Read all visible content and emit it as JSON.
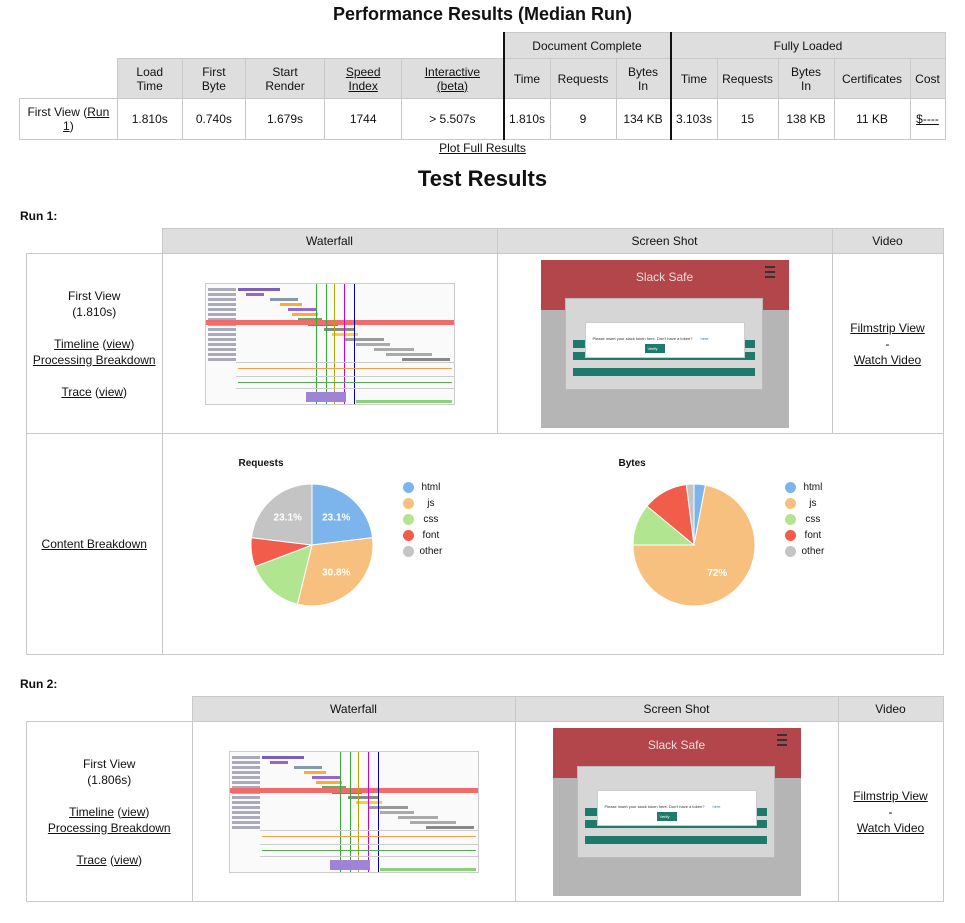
{
  "title": "Performance Results (Median Run)",
  "perf": {
    "group_doc": "Document Complete",
    "group_full": "Fully Loaded",
    "headers": {
      "load_time": [
        "Load",
        "Time"
      ],
      "first_byte": [
        "First",
        "Byte"
      ],
      "start_render": [
        "Start",
        "Render"
      ],
      "speed_index": [
        "Speed",
        "Index"
      ],
      "interactive": [
        "Interactive",
        "(beta)"
      ],
      "doc_time": "Time",
      "doc_requests": "Requests",
      "doc_bytes": [
        "Bytes",
        "In"
      ],
      "full_time": "Time",
      "full_requests": "Requests",
      "full_bytes": [
        "Bytes",
        "In"
      ],
      "certificates": "Certificates",
      "cost": "Cost"
    },
    "row": {
      "label_prefix": "First View (",
      "label_link": "Run",
      "label_link2": "1",
      "label_suffix": ")",
      "load_time": "1.810s",
      "first_byte": "0.740s",
      "start_render": "1.679s",
      "speed_index": "1744",
      "interactive": "> 5.507s",
      "doc_time": "1.810s",
      "doc_requests": "9",
      "doc_bytes": "134 KB",
      "full_time": "3.103s",
      "full_requests": "15",
      "full_bytes": "138 KB",
      "certificates": "11 KB",
      "cost": "$----"
    }
  },
  "plot_full": "Plot Full Results",
  "test_results_title": "Test Results",
  "col_headers": {
    "waterfall": "Waterfall",
    "screenshot": "Screen Shot",
    "video": "Video"
  },
  "screenshot_app": {
    "title": "Slack Safe",
    "dialog_text": "Please insert your slack token here. Don't have a token?",
    "dialog_link": "here",
    "button": "Verify"
  },
  "runs": [
    {
      "label": "Run 1:",
      "first_view": "First View",
      "time": "(1.810s)",
      "timeline": "Timeline",
      "view": "view",
      "processing": "Processing Breakdown",
      "trace": "Trace",
      "filmstrip": "Filmstrip View",
      "dash": "-",
      "watch": "Watch Video",
      "content_breakdown": "Content Breakdown"
    },
    {
      "label": "Run 2:",
      "first_view": "First View",
      "time": "(1.806s)",
      "timeline": "Timeline",
      "view": "view",
      "processing": "Processing Breakdown",
      "trace": "Trace",
      "filmstrip": "Filmstrip View",
      "dash": "-",
      "watch": "Watch Video"
    }
  ],
  "chart_data": [
    {
      "type": "pie",
      "title": "Requests",
      "categories": [
        "html",
        "js",
        "css",
        "font",
        "other"
      ],
      "values": [
        23.1,
        30.8,
        15.4,
        7.7,
        23.1
      ],
      "data_labels": [
        "23.1%",
        "30.8%",
        "",
        "",
        "23.1%"
      ],
      "colors": [
        "#7cb5ec",
        "#f7c07f",
        "#b2e58f",
        "#f15c4b",
        "#c4c4c4"
      ],
      "legend": "right"
    },
    {
      "type": "pie",
      "title": "Bytes",
      "categories": [
        "html",
        "js",
        "css",
        "font",
        "other"
      ],
      "values": [
        3,
        72,
        11,
        12,
        2
      ],
      "data_labels": [
        "",
        "72%",
        "",
        "",
        ""
      ],
      "colors": [
        "#7cb5ec",
        "#f7c07f",
        "#b2e58f",
        "#f15c4b",
        "#c4c4c4"
      ],
      "legend": "right"
    }
  ]
}
